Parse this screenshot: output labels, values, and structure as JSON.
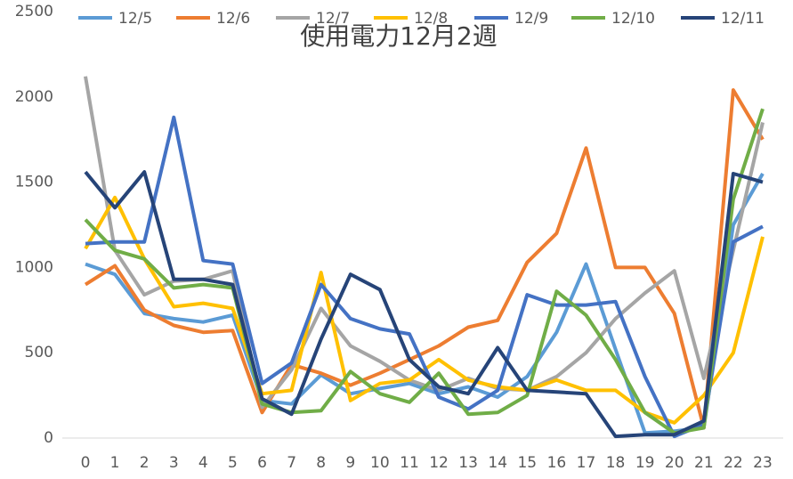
{
  "chart_data": {
    "type": "line",
    "title": "使用電力12月2週",
    "categories": [
      "0",
      "1",
      "2",
      "3",
      "4",
      "5",
      "6",
      "7",
      "8",
      "9",
      "10",
      "11",
      "12",
      "13",
      "14",
      "15",
      "16",
      "17",
      "18",
      "19",
      "20",
      "21",
      "22",
      "23"
    ],
    "ylim": [
      0,
      2500
    ],
    "yticks": [
      0,
      500,
      1000,
      1500,
      2000,
      2500
    ],
    "grid": false,
    "legend": "top",
    "series": [
      {
        "name": "12/5",
        "color": "#5b9bd5",
        "values": [
          1020,
          960,
          730,
          700,
          680,
          720,
          220,
          200,
          370,
          260,
          290,
          320,
          260,
          300,
          240,
          360,
          620,
          1020,
          520,
          30,
          40,
          60,
          1250,
          1550
        ]
      },
      {
        "name": "12/6",
        "color": "#ed7d31",
        "values": [
          900,
          1010,
          750,
          660,
          620,
          630,
          150,
          430,
          380,
          310,
          380,
          460,
          540,
          650,
          690,
          1030,
          1200,
          1700,
          1000,
          1000,
          730,
          60,
          2040,
          1750
        ]
      },
      {
        "name": "12/7",
        "color": "#a5a5a5",
        "values": [
          2120,
          1100,
          840,
          920,
          930,
          980,
          180,
          400,
          760,
          540,
          450,
          340,
          280,
          350,
          290,
          280,
          360,
          500,
          700,
          850,
          980,
          350,
          1100,
          1850
        ]
      },
      {
        "name": "12/8",
        "color": "#ffc000",
        "values": [
          1110,
          1410,
          1050,
          770,
          790,
          760,
          260,
          280,
          970,
          220,
          320,
          340,
          460,
          340,
          300,
          280,
          340,
          280,
          280,
          150,
          90,
          250,
          500,
          1180
        ]
      },
      {
        "name": "12/9",
        "color": "#4472c4",
        "values": [
          1140,
          1150,
          1150,
          1880,
          1040,
          1020,
          320,
          440,
          900,
          700,
          640,
          610,
          240,
          170,
          280,
          840,
          780,
          780,
          800,
          360,
          10,
          80,
          1150,
          1240
        ]
      },
      {
        "name": "12/10",
        "color": "#70ad47",
        "values": [
          1280,
          1100,
          1050,
          880,
          900,
          880,
          200,
          150,
          160,
          390,
          260,
          210,
          380,
          140,
          150,
          250,
          860,
          720,
          460,
          150,
          30,
          60,
          1400,
          1930
        ]
      },
      {
        "name": "12/11",
        "color": "#264478",
        "values": [
          1560,
          1350,
          1560,
          930,
          930,
          900,
          230,
          140,
          580,
          960,
          870,
          460,
          300,
          260,
          530,
          280,
          270,
          260,
          10,
          20,
          20,
          100,
          1550,
          1500
        ]
      }
    ]
  }
}
